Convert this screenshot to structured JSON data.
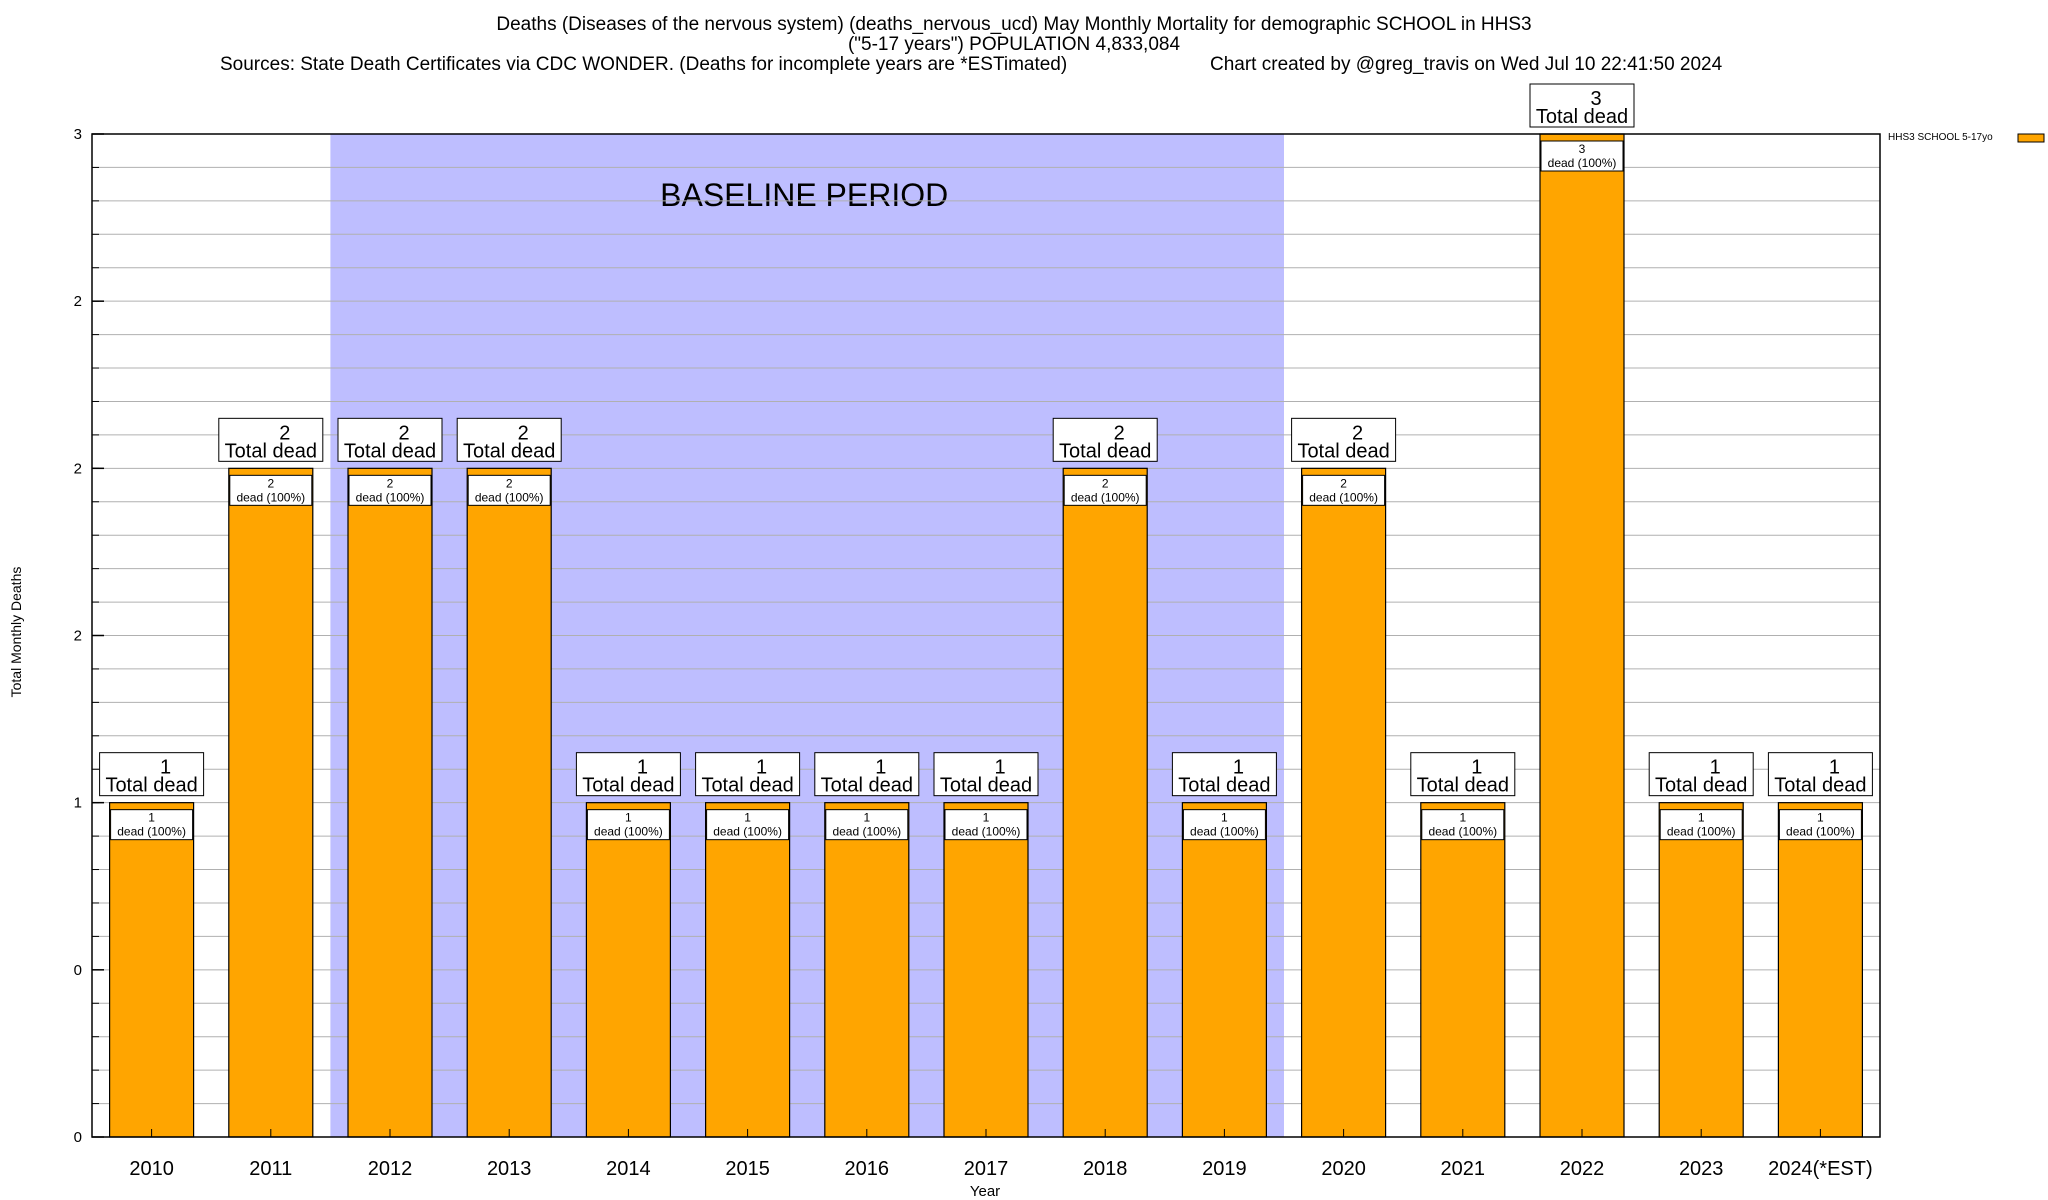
{
  "title_line1": "Deaths (Diseases of the nervous system) (deaths_nervous_ucd) May Monthly Mortality for demographic SCHOOL in HHS3",
  "title_line2": "(\"5-17 years\") POPULATION 4,833,084",
  "sources": "Sources: State Death Certificates via CDC WONDER. (Deaths for incomplete years are *ESTimated)",
  "credit": "Chart created by @greg_travis on Wed Jul 10 22:41:50 2024",
  "colors": {
    "bar": "#FFA500",
    "baseline": "#BEBEFF",
    "grid": "#B0B0B0"
  },
  "chart_data": {
    "type": "bar",
    "title": "Deaths (Diseases of the nervous system) (deaths_nervous_ucd) May Monthly Mortality for demographic SCHOOL in HHS3",
    "xlabel": "Year",
    "ylabel": "Total Monthly Deaths",
    "categories": [
      "2010",
      "2011",
      "2012",
      "2013",
      "2014",
      "2015",
      "2016",
      "2017",
      "2018",
      "2019",
      "2020",
      "2021",
      "2022",
      "2023",
      "2024(*EST)"
    ],
    "series": [
      {
        "name": "HHS3 SCHOOL 5-17yo",
        "values": [
          1,
          2,
          2,
          2,
          1,
          1,
          1,
          1,
          2,
          1,
          2,
          1,
          3,
          1,
          1
        ]
      }
    ],
    "ylim": [
      0,
      3
    ],
    "y_ticks": [
      0,
      0.5,
      1,
      1.5,
      2,
      2.5,
      3
    ],
    "y_tick_labels": [
      "0",
      "0",
      "1",
      "2",
      "2",
      "2",
      "3"
    ],
    "total_label_suffix": "Total dead",
    "inner_label_suffix": "dead (100%)",
    "baseline": {
      "label": "BASELINE PERIOD",
      "start": "2012",
      "end": "2019"
    },
    "legend_position": "top-right",
    "grid": true
  }
}
